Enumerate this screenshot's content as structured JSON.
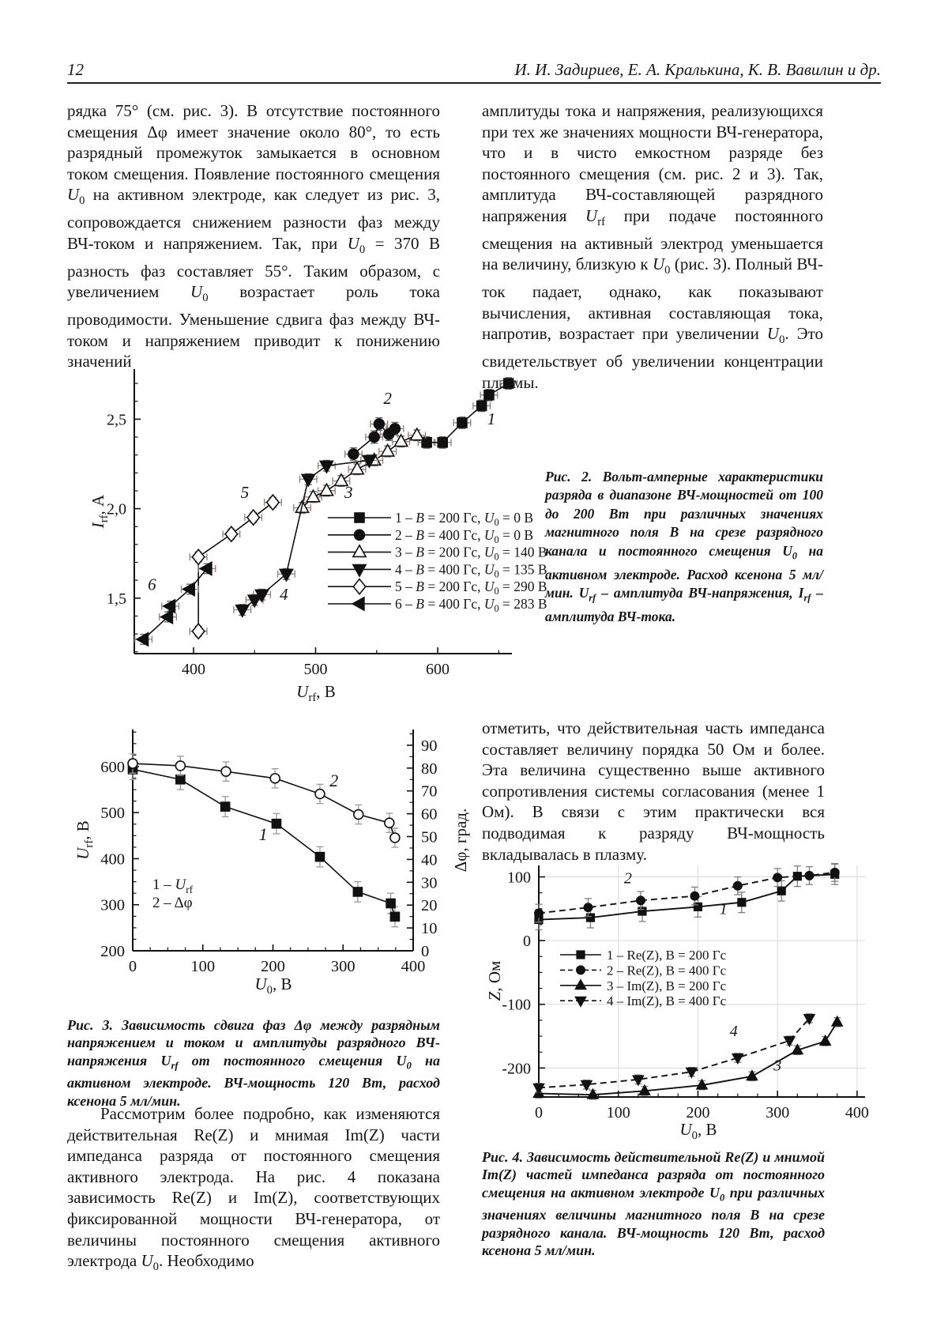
{
  "header": {
    "page_number": "12",
    "authors": "И. И. Задириев, Е. А. Кралькина, К. В. Вавилин и др."
  },
  "paragraphs": {
    "left_1": "рядка 75° (см. рис. 3). В отсутствие постоянного смещения Δφ имеет значение около 80°, то есть разрядный промежуток замыкается в основном током смещения. Появление постоянного смещения *U*_{0} на активном электроде, как следует из рис. 3, сопровождается снижением разности фаз между ВЧ-током и напряжением. Так, при *U*_{0} = 370 В разность фаз составляет 55°. Таким образом, с увеличением *U*_{0} возрастает роль тока проводимости. Уменьшение сдвига фаз между ВЧ-током и напряжением приводит к понижению значений",
    "right_1": "амплитуды тока и напряжения, реализующихся при тех же значениях мощности ВЧ-генератора, что и в чисто емкостном разряде без постоянного смещения (см. рис. 2 и 3). Так, амплитуда ВЧ-составляющей разрядного напряжения *U*_{rf} при подаче постоянного смещения на активный электрод уменьшается на величину, близкую к *U*_{0} (рис. 3). Полный ВЧ-ток падает, однако, как показывают вычисления, активная составляющая тока, напротив, возрастает при увеличении *U*_{0}. Это свидетельствует об увеличении концентрации плазмы.",
    "right_2": "отметить, что действительная часть импеданса составляет величину порядка 50 Ом и более. Эта величина существенно выше активного сопротивления системы согласования (менее 1 Ом). В связи с этим практически вся подводимая к разряду ВЧ-мощность вкладывалась в плазму.",
    "left_2": "Рассмотрим более подробно, как изменяются действительная Re(Z) и мнимая Im(Z) части импеданса разряда от постоянного смещения активного электрода. На рис. 4 показана зависимость Re(Z) и Im(Z), соответствующих фиксированной мощности ВЧ-генератора, от величины постоянного смещения активного электрода *U*_{0}. Необходимо"
  },
  "captions": {
    "fig2": "Рис. 2. Вольт-амперные характеристики разряда в диапазоне ВЧ-мощностей от 100 до 200 Вт при различных значениях магнитного поля *В* на срезе разрядного канала и постоянного смещения *U*_{0} на активном электроде. Расход ксенона 5 мл/мин. *U*_{rf} – амплитуда ВЧ-напряжения, *I*_{rf} – амплитуда ВЧ-тока.",
    "fig3": "Рис. 3. Зависимость сдвига фаз Δφ между разрядным напряжением и током и амплитуды разрядного ВЧ-напряжения *U*_{rf} от постоянного смещения *U*_{0} на активном электроде. ВЧ-мощность 120 Вт, расход ксенона 5 мл/мин.",
    "fig4": "Рис. 4. Зависимость действительной Re(Z) и мнимой Im(Z) частей импеданса разряда от постоянного смещения на активном электроде *U*_{0} при различных значениях величины магнитного поля *В* на срезе разрядного канала. ВЧ-мощность 120 Вт, расход ксенона 5 мл/мин."
  },
  "chart_data": [
    {
      "name": "fig2",
      "type": "line",
      "title": "",
      "xlabel": "*U*_{rf}, В",
      "ylabel": "*I*_{rf}, А",
      "xlim": [
        351.5,
        660.8
      ],
      "ylim": [
        1.19,
        2.78
      ],
      "x_ticks": [
        [
          400,
          "400"
        ],
        [
          500,
          "500"
        ],
        [
          600,
          "600"
        ]
      ],
      "y_ticks": [
        [
          1.5,
          "1,5"
        ],
        [
          2.0,
          "2,0"
        ],
        [
          2.5,
          "2,5"
        ]
      ],
      "x_minor": 50,
      "y_minor": 0.1,
      "grid": false,
      "err_color_x": "#997b6d",
      "err_color_y": "#666666",
      "series": [
        {
          "label": "1 – *B* = 200 Гс, *U*_{0} = 0 В",
          "marker": "square",
          "open": false,
          "dash": false,
          "xerr": 7,
          "yerr": 0.032,
          "points": [
            [
              591,
              2.37
            ],
            [
              604,
              2.37
            ],
            [
              620,
              2.48
            ],
            [
              636,
              2.575
            ],
            [
              642,
              2.635
            ],
            [
              658,
              2.7
            ]
          ]
        },
        {
          "label": "2 – *B* = 400 Гс, *U*_{0} = 0 В",
          "marker": "circle",
          "open": false,
          "dash": false,
          "xerr": 7,
          "yerr": 0.035,
          "points": [
            [
              531,
              2.305
            ],
            [
              548,
              2.4
            ],
            [
              552,
              2.473
            ],
            [
              560,
              2.416
            ],
            [
              565,
              2.447
            ]
          ]
        },
        {
          "label": "3 – *B* = 200 Гс, *U*_{0} = 140 В",
          "marker": "tri-up",
          "open": true,
          "dash": false,
          "xerr": 7,
          "yerr": 0.03,
          "points": [
            [
              489,
              2.005
            ],
            [
              498,
              2.065
            ],
            [
              509,
              2.1
            ],
            [
              521,
              2.155
            ],
            [
              534,
              2.22
            ],
            [
              548,
              2.27
            ],
            [
              559,
              2.32
            ],
            [
              570,
              2.375
            ],
            [
              583,
              2.41
            ]
          ]
        },
        {
          "label": "4 – *B* = 400 Гс, *U*_{0} = 135 В",
          "marker": "tri-down",
          "open": false,
          "dash": false,
          "xerr": 7,
          "yerr": 0.03,
          "points": [
            [
              440,
              1.435
            ],
            [
              450,
              1.49
            ],
            [
              456,
              1.52
            ],
            [
              476,
              1.635
            ],
            [
              494,
              2.165
            ],
            [
              509,
              2.24
            ],
            [
              544,
              2.27
            ]
          ]
        },
        {
          "label": "5 – *B* = 200 Гс, *U*_{0} = 290 В",
          "marker": "diamond",
          "open": true,
          "dash": false,
          "xerr": 7,
          "yerr": 0.028,
          "points": [
            [
              404,
              1.315
            ],
            [
              404,
              1.73
            ],
            [
              431,
              1.858
            ],
            [
              449,
              1.951
            ],
            [
              465,
              2.035
            ]
          ]
        },
        {
          "label": "6 – *B* = 400 Гс, *U*_{0} = 283 В",
          "marker": "tri-left",
          "open": false,
          "dash": false,
          "xerr": 7,
          "yerr": 0.028,
          "points": [
            [
              359,
              1.27
            ],
            [
              379,
              1.395
            ],
            [
              381,
              1.455
            ],
            [
              397,
              1.55
            ],
            [
              411,
              1.665
            ]
          ]
        }
      ],
      "curve_labels": [
        [
          "1",
          644,
          2.47
        ],
        [
          "2",
          559,
          2.585
        ],
        [
          "3",
          527,
          2.06
        ],
        [
          "4",
          474,
          1.49
        ],
        [
          "5",
          442,
          2.06
        ],
        [
          "6",
          366,
          1.545
        ]
      ],
      "legend_position": "inside-lower-right"
    },
    {
      "name": "fig3",
      "type": "line",
      "title": "",
      "xlabel": "*U*_{0}, В",
      "ylabel_left": "*U*_{rf}, В",
      "ylabel_right": "Δφ, град.",
      "xlim": [
        0,
        400
      ],
      "ylim_left": [
        200,
        680.6
      ],
      "ylim_right": [
        0,
        96.9
      ],
      "x_ticks": [
        [
          0,
          "0"
        ],
        [
          100,
          "100"
        ],
        [
          200,
          "200"
        ],
        [
          300,
          "300"
        ],
        [
          400,
          "400"
        ]
      ],
      "y_ticks_left": [
        [
          200,
          "200"
        ],
        [
          300,
          "300"
        ],
        [
          400,
          "400"
        ],
        [
          500,
          "500"
        ],
        [
          600,
          "600"
        ]
      ],
      "y_ticks_right": [
        [
          0,
          "0"
        ],
        [
          10,
          "10"
        ],
        [
          20,
          "20"
        ],
        [
          30,
          "30"
        ],
        [
          40,
          "40"
        ],
        [
          50,
          "50"
        ],
        [
          60,
          "60"
        ],
        [
          70,
          "70"
        ],
        [
          80,
          "80"
        ],
        [
          90,
          "90"
        ]
      ],
      "x_minor": 25,
      "y_minor_left": 25,
      "y_minor_right": 5,
      "grid": false,
      "right_axis": true,
      "err_color_y": "#9a9a9a",
      "series": [
        {
          "axis": "left",
          "label": "1 – *U*_{rf}",
          "marker": "square",
          "open": false,
          "dash": false,
          "yerr": 22,
          "points": [
            [
              0,
              594
            ],
            [
              68,
              572
            ],
            [
              132,
              513
            ],
            [
              205,
              476
            ],
            [
              267,
              404
            ],
            [
              321,
              328
            ],
            [
              368,
              303
            ],
            [
              374,
              274
            ]
          ]
        },
        {
          "axis": "right",
          "label": "2 – Δφ",
          "marker": "circle",
          "open": true,
          "dash": false,
          "yerr": 4.2,
          "points": [
            [
              0,
              82
            ],
            [
              68,
              81
            ],
            [
              133,
              78.5
            ],
            [
              203,
              75.5
            ],
            [
              267,
              68.7
            ],
            [
              322,
              59.7
            ],
            [
              366,
              56
            ],
            [
              374,
              49.5
            ]
          ]
        }
      ],
      "curve_labels": [
        [
          "1",
          186,
          440
        ],
        [
          "2",
          287,
          557
        ]
      ],
      "legend_texts": [
        "1 – *U*_{rf}",
        "2 – Δφ"
      ],
      "legend_position": "inside-lower-left"
    },
    {
      "name": "fig4",
      "type": "line",
      "title": "",
      "xlabel": "*U*_{0}, В",
      "ylabel": "*Z*, Ом",
      "xlim": [
        0,
        410
      ],
      "ylim": [
        -245.5,
        118
      ],
      "x_ticks": [
        [
          0,
          "0"
        ],
        [
          100,
          "100"
        ],
        [
          200,
          "200"
        ],
        [
          300,
          "300"
        ],
        [
          400,
          "400"
        ]
      ],
      "y_ticks": [
        [
          100,
          "100"
        ],
        [
          0,
          "0"
        ],
        [
          -100,
          "-100"
        ],
        [
          -200,
          "-200"
        ]
      ],
      "x_minor": 25,
      "y_minor": 25,
      "grid": true,
      "grid_color": "#d9d9d9",
      "err_color_y": "#7d7d7d",
      "series": [
        {
          "label": "1 – Re(Z), B = 200 Гс",
          "marker": "square",
          "open": false,
          "dash": false,
          "yerr": 16,
          "points": [
            [
              0,
              33
            ],
            [
              65,
              36
            ],
            [
              130,
              46
            ],
            [
              200,
              53
            ],
            [
              255,
              60
            ],
            [
              305,
              78
            ],
            [
              325,
              101
            ],
            [
              372,
              104
            ]
          ]
        },
        {
          "label": "2 – Re(Z), B = 400 Гс",
          "marker": "circle",
          "open": false,
          "dash": true,
          "yerr": 14,
          "points": [
            [
              0,
              43
            ],
            [
              62,
              52
            ],
            [
              128,
              63
            ],
            [
              196,
              70
            ],
            [
              250,
              86
            ],
            [
              300,
              99
            ],
            [
              340,
              102
            ],
            [
              372,
              107
            ]
          ]
        },
        {
          "label": "3 – Im(Z), B = 200 Гс",
          "marker": "tri-up",
          "open": false,
          "dash": false,
          "yerr": 7,
          "points": [
            [
              0,
              -240
            ],
            [
              68,
              -242
            ],
            [
              133,
              -236
            ],
            [
              205,
              -227
            ],
            [
              268,
              -213
            ],
            [
              325,
              -172
            ],
            [
              360,
              -158
            ],
            [
              375,
              -128
            ]
          ]
        },
        {
          "label": "4 – Im(Z), B = 400 Гс",
          "marker": "tri-down",
          "open": false,
          "dash": true,
          "yerr": 7,
          "points": [
            [
              0,
              -231
            ],
            [
              60,
              -226
            ],
            [
              125,
              -218
            ],
            [
              192,
              -206
            ],
            [
              250,
              -184
            ],
            [
              315,
              -157
            ],
            [
              340,
              -122
            ]
          ]
        }
      ],
      "curve_labels": [
        [
          "1",
          232,
          42
        ],
        [
          "2",
          112,
          90
        ],
        [
          "3",
          300,
          -204
        ],
        [
          "4",
          245,
          -150
        ]
      ],
      "legend_position": "inside-middle-left"
    }
  ]
}
